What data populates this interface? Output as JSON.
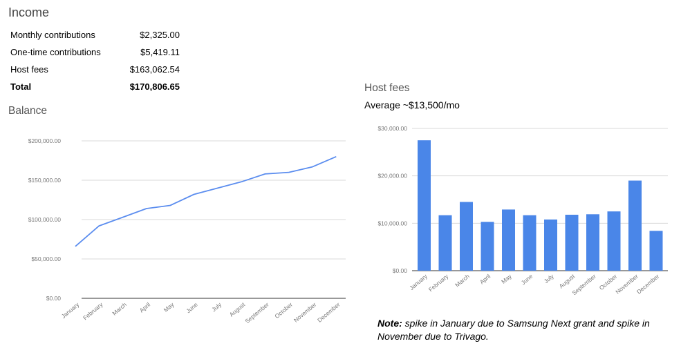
{
  "income": {
    "title": "Income",
    "rows": [
      {
        "label": "Monthly contributions",
        "value": "$2,325.00"
      },
      {
        "label": "One-time contributions",
        "value": "$5,419.11"
      },
      {
        "label": "Host fees",
        "value": "$163,062.54"
      },
      {
        "label": "Total",
        "value": "$170,806.65"
      }
    ]
  },
  "note": {
    "label": "Note:",
    "text": "spike in January due to Samsung Next grant and spike in November due to Trivago."
  },
  "chart_data": [
    {
      "type": "line",
      "title": "Balance",
      "categories": [
        "January",
        "February",
        "March",
        "April",
        "May",
        "June",
        "July",
        "August",
        "September",
        "October",
        "November",
        "December"
      ],
      "values": [
        66000,
        92000,
        103000,
        114000,
        118000,
        132000,
        140000,
        148000,
        158000,
        160000,
        167000,
        180000
      ],
      "ylim": [
        0,
        200000
      ],
      "yticks": [
        0,
        50000,
        100000,
        150000,
        200000
      ],
      "ytick_labels": [
        "$0.00",
        "$50,000.00",
        "$100,000.00",
        "$150,000.00",
        "$200,000.00"
      ],
      "grid": true,
      "color": "#5b8def"
    },
    {
      "type": "bar",
      "title": "Host fees",
      "subtitle": "Average ~$13,500/mo",
      "categories": [
        "January",
        "February",
        "March",
        "April",
        "May",
        "June",
        "July",
        "August",
        "September",
        "October",
        "November",
        "December"
      ],
      "values": [
        27500,
        11700,
        14500,
        10300,
        12900,
        11700,
        10800,
        11800,
        11900,
        12500,
        19000,
        8400
      ],
      "ylim": [
        0,
        30000
      ],
      "yticks": [
        0,
        10000,
        20000,
        30000
      ],
      "ytick_labels": [
        "$0.00",
        "$10,000.00",
        "$20,000.00",
        "$30,000.00"
      ],
      "grid": true,
      "color": "#4a86e8"
    }
  ]
}
